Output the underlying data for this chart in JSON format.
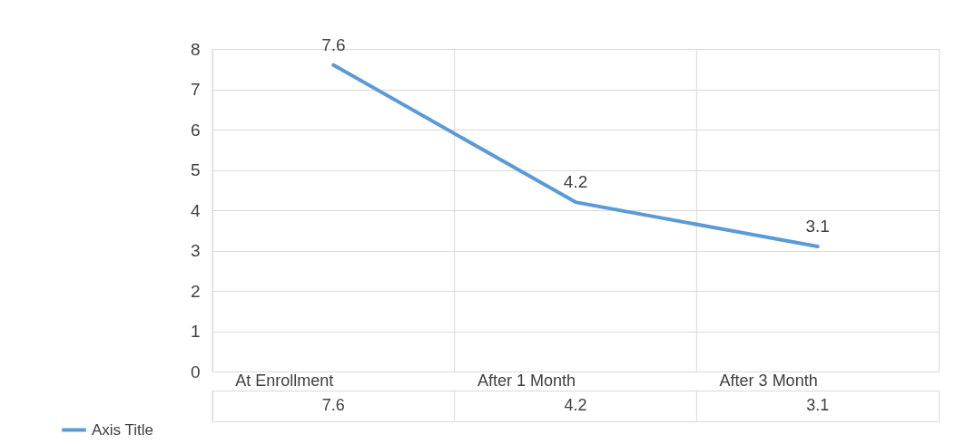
{
  "chart_data": {
    "type": "line",
    "categories": [
      "At Enrollment",
      "After 1 Month",
      "After 3 Month"
    ],
    "series": [
      {
        "name": "Axis Title",
        "color": "#5b9bd5",
        "values": [
          7.6,
          4.2,
          3.1
        ]
      }
    ],
    "annotations": [
      "7.6",
      "4.2",
      "3.1"
    ],
    "ylim": [
      0,
      8
    ],
    "yticks": [
      0,
      1,
      2,
      3,
      4,
      5,
      6,
      7,
      8
    ],
    "grid": true,
    "data_labels": true,
    "legend": "bottom left",
    "marker": "none",
    "line_style": "solid"
  }
}
